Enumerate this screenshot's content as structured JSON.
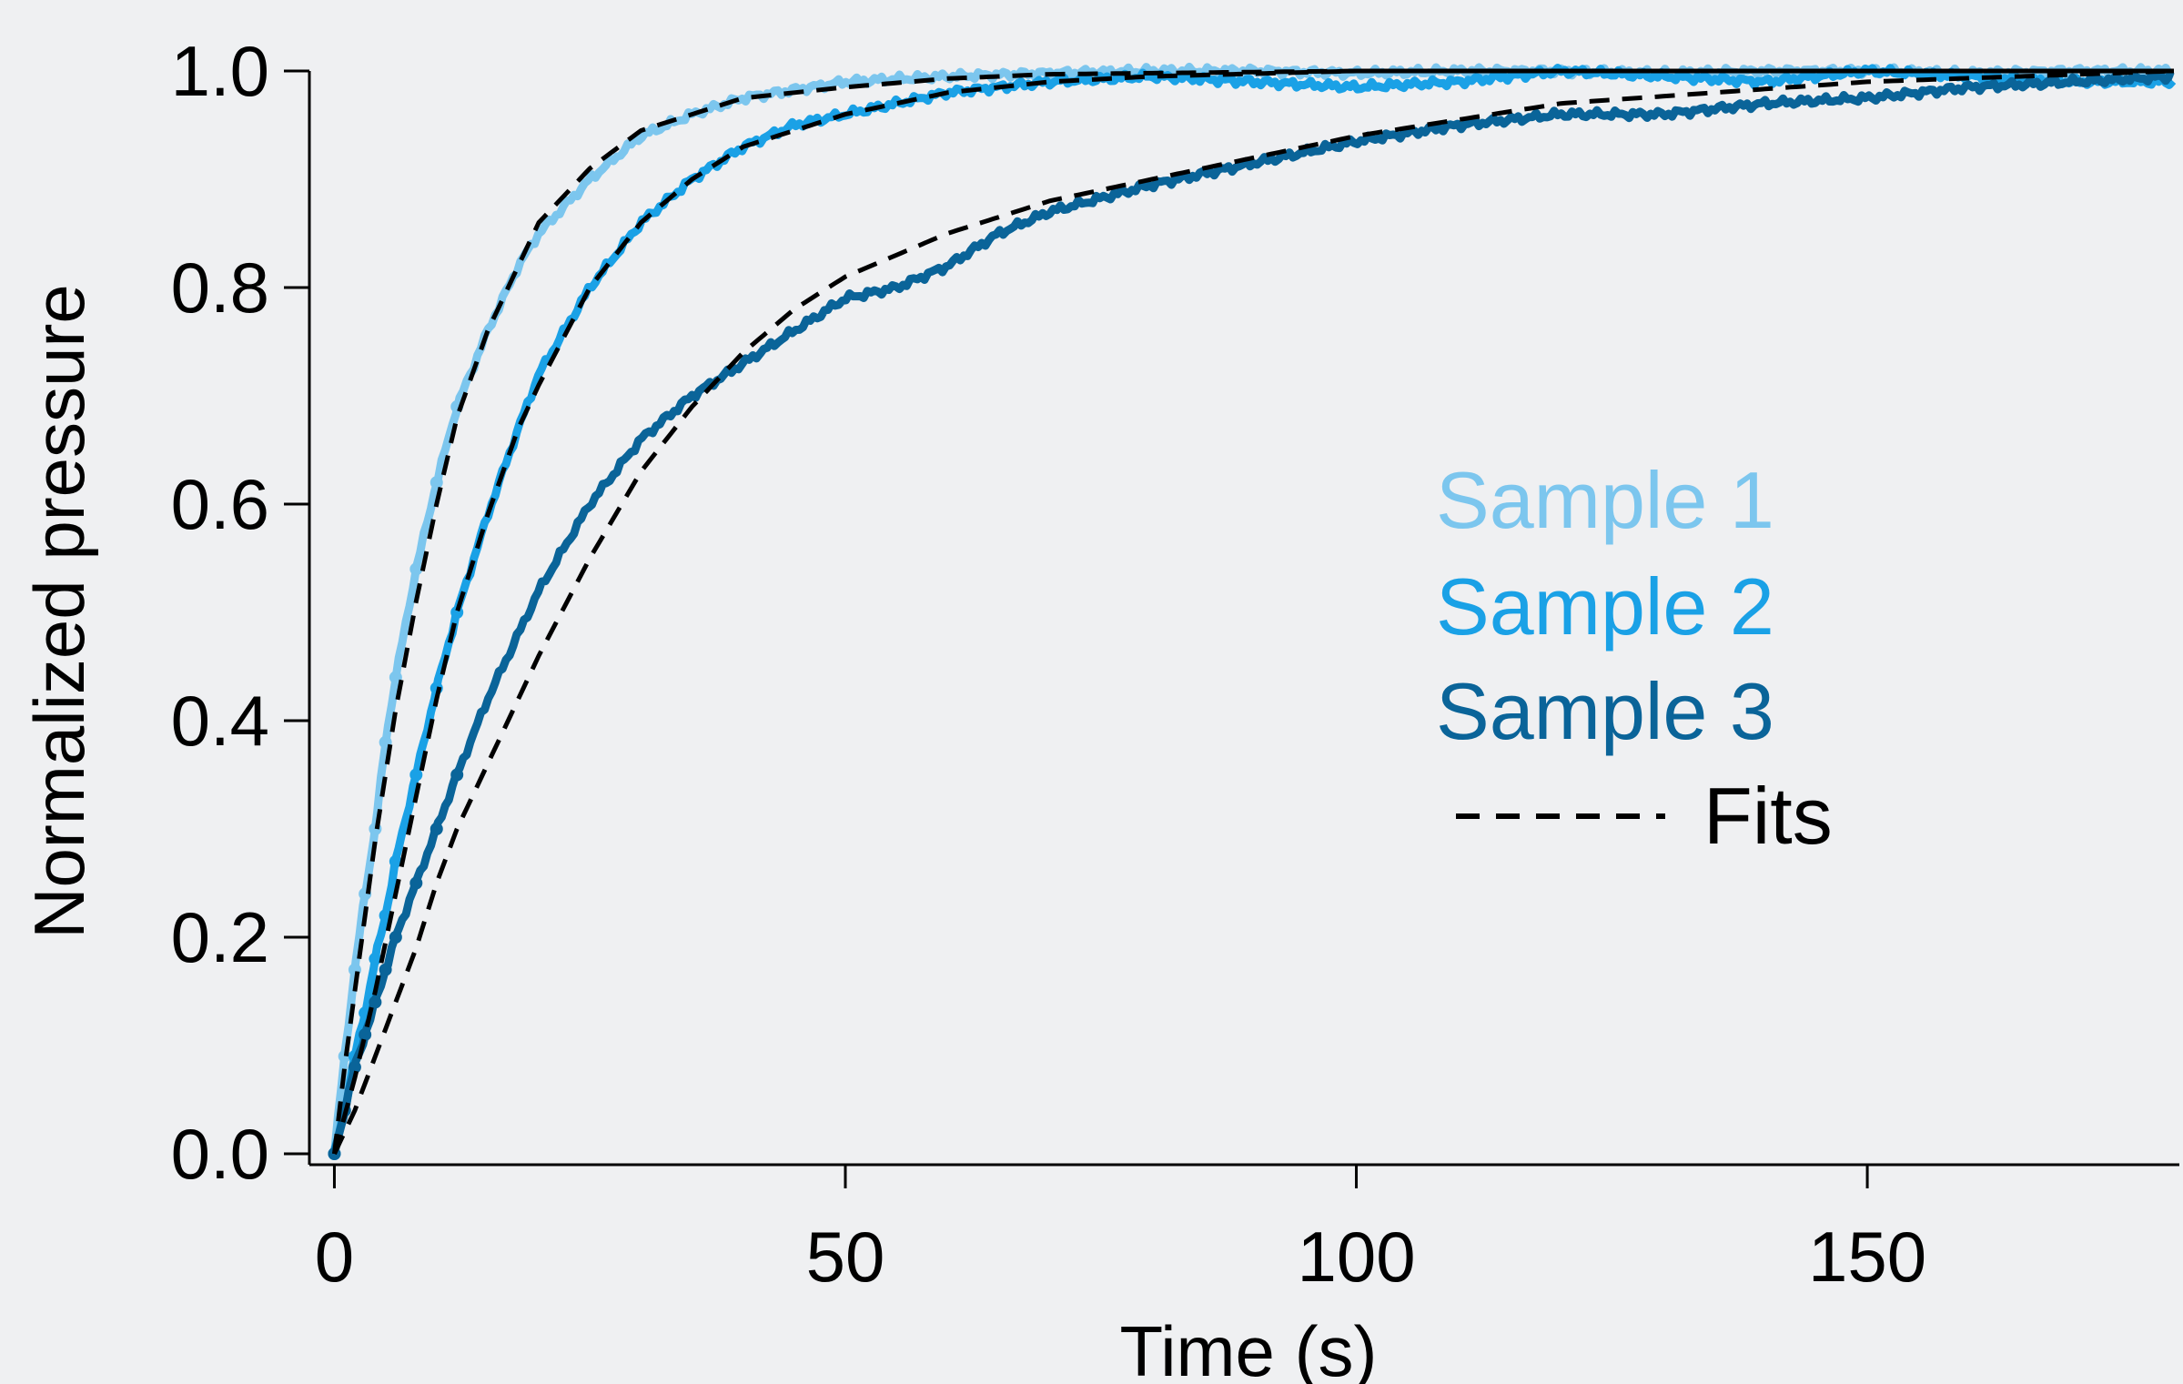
{
  "chart_data": {
    "type": "scatter",
    "title": "",
    "xlabel": "Time (s)",
    "ylabel": "Normalized pressure",
    "xlim": [
      -2,
      180
    ],
    "ylim": [
      0,
      1.0
    ],
    "xticks": [
      {
        "value": 0,
        "label": "0"
      },
      {
        "value": 50,
        "label": "50"
      },
      {
        "value": 100,
        "label": "100"
      },
      {
        "value": 150,
        "label": "150"
      }
    ],
    "yticks": [
      {
        "value": 0.0,
        "label": "0.0"
      },
      {
        "value": 0.2,
        "label": "0.2"
      },
      {
        "value": 0.4,
        "label": "0.4"
      },
      {
        "value": 0.6,
        "label": "0.6"
      },
      {
        "value": 0.8,
        "label": "0.8"
      },
      {
        "value": 1.0,
        "label": "1.0"
      }
    ],
    "grid": false,
    "legend_position": "center-right",
    "series": [
      {
        "name": "Sample 1",
        "color": "#7cc6ee",
        "marker": "dots",
        "x": [
          0,
          1,
          2,
          3,
          4,
          5,
          6,
          8,
          10,
          12,
          15,
          18,
          20,
          25,
          30,
          35,
          40,
          50,
          60,
          70,
          80,
          90,
          100,
          110,
          120,
          130,
          140,
          150,
          160,
          170,
          180
        ],
        "y": [
          0,
          0.09,
          0.17,
          0.24,
          0.3,
          0.38,
          0.44,
          0.54,
          0.62,
          0.69,
          0.76,
          0.82,
          0.85,
          0.9,
          0.94,
          0.96,
          0.975,
          0.99,
          0.995,
          0.998,
          1.0,
          1.0,
          0.998,
          1.0,
          1.0,
          0.998,
          1.0,
          1.0,
          0.998,
          1.0,
          1.0
        ]
      },
      {
        "name": "Sample 2",
        "color": "#1aa1e6",
        "marker": "dots",
        "x": [
          0,
          1,
          2,
          3,
          4,
          5,
          6,
          8,
          10,
          12,
          15,
          18,
          20,
          25,
          30,
          35,
          40,
          45,
          50,
          60,
          70,
          80,
          90,
          100,
          110,
          120,
          130,
          140,
          150,
          160,
          170,
          180
        ],
        "y": [
          0,
          0.04,
          0.09,
          0.13,
          0.18,
          0.22,
          0.27,
          0.35,
          0.43,
          0.5,
          0.59,
          0.67,
          0.72,
          0.8,
          0.86,
          0.9,
          0.93,
          0.95,
          0.96,
          0.98,
          0.99,
          0.995,
          0.99,
          0.985,
          0.99,
          1.0,
          0.995,
          0.99,
          1.0,
          0.995,
          0.99,
          0.99
        ]
      },
      {
        "name": "Sample 3",
        "color": "#0a6499",
        "marker": "dots",
        "x": [
          0,
          1,
          2,
          3,
          4,
          5,
          6,
          8,
          10,
          12,
          15,
          18,
          20,
          25,
          30,
          35,
          40,
          45,
          50,
          55,
          60,
          65,
          70,
          80,
          90,
          100,
          110,
          120,
          130,
          140,
          150,
          160,
          170,
          180
        ],
        "y": [
          0,
          0.04,
          0.08,
          0.11,
          0.14,
          0.17,
          0.2,
          0.25,
          0.3,
          0.35,
          0.42,
          0.48,
          0.52,
          0.6,
          0.66,
          0.7,
          0.73,
          0.76,
          0.79,
          0.8,
          0.82,
          0.85,
          0.87,
          0.895,
          0.915,
          0.935,
          0.95,
          0.96,
          0.96,
          0.97,
          0.975,
          0.985,
          0.99,
          0.995
        ]
      },
      {
        "name": "Fits",
        "color": "#000000",
        "style": "dashed",
        "fits": [
          {
            "x": [
              0,
              1,
              2,
              3,
              4,
              5,
              6,
              8,
              10,
              12,
              15,
              18,
              20,
              25,
              30,
              35,
              40,
              50,
              60,
              70,
              80,
              100,
              120,
              150,
              180
            ],
            "y": [
              0,
              0.08,
              0.15,
              0.22,
              0.29,
              0.35,
              0.41,
              0.51,
              0.6,
              0.68,
              0.76,
              0.82,
              0.86,
              0.91,
              0.945,
              0.96,
              0.975,
              0.985,
              0.993,
              0.997,
              0.998,
              1.0,
              1.0,
              1.0,
              1.0
            ]
          },
          {
            "x": [
              0,
              2,
              4,
              6,
              8,
              10,
              12,
              15,
              18,
              20,
              25,
              30,
              35,
              40,
              50,
              60,
              70,
              80,
              100,
              120,
              150,
              180
            ],
            "y": [
              0,
              0.07,
              0.15,
              0.24,
              0.33,
              0.42,
              0.5,
              0.59,
              0.67,
              0.71,
              0.8,
              0.86,
              0.9,
              0.93,
              0.96,
              0.98,
              0.99,
              0.995,
              1.0,
              1.0,
              1.0,
              1.0
            ]
          },
          {
            "x": [
              0,
              2,
              4,
              6,
              8,
              10,
              12,
              15,
              18,
              20,
              25,
              30,
              35,
              40,
              45,
              50,
              60,
              70,
              80,
              100,
              120,
              150,
              180
            ],
            "y": [
              0,
              0.04,
              0.09,
              0.14,
              0.19,
              0.25,
              0.3,
              0.36,
              0.42,
              0.46,
              0.55,
              0.63,
              0.69,
              0.74,
              0.78,
              0.81,
              0.85,
              0.88,
              0.9,
              0.94,
              0.97,
              0.99,
              1.0
            ]
          }
        ]
      }
    ]
  }
}
